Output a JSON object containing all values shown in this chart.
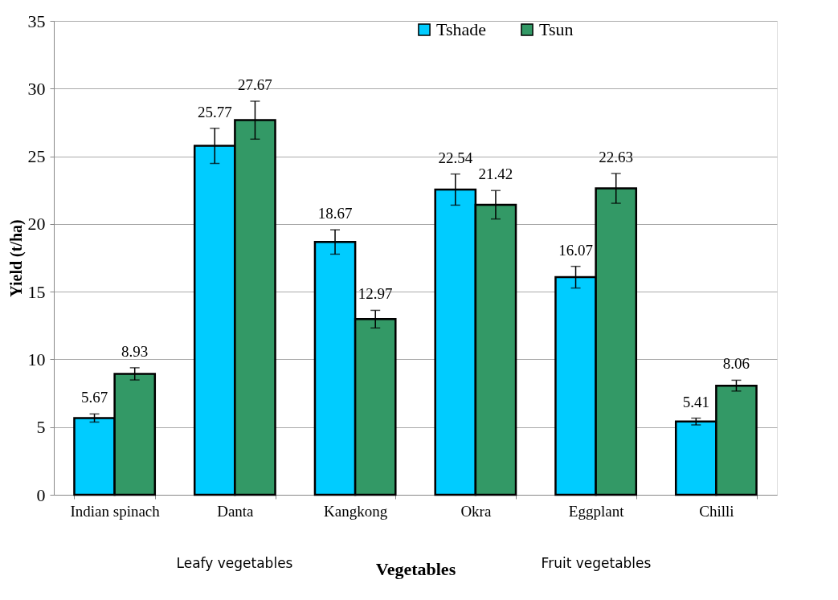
{
  "chart_data": {
    "type": "bar",
    "xlabel": "Vegetables",
    "ylabel": "Yield (t/ha)",
    "categories": [
      "Indian spinach",
      "Danta",
      "Kangkong",
      "Okra",
      "Eggplant",
      "Chilli"
    ],
    "series": [
      {
        "name": "Tshade",
        "color": "#00ccff",
        "values": [
          5.67,
          25.77,
          18.67,
          22.54,
          16.07,
          5.41
        ],
        "errors": [
          0.3,
          1.3,
          0.9,
          1.15,
          0.8,
          0.25
        ]
      },
      {
        "name": "Tsun",
        "color": "#339966",
        "values": [
          8.93,
          27.67,
          12.97,
          21.42,
          22.63,
          8.06
        ],
        "errors": [
          0.45,
          1.4,
          0.65,
          1.05,
          1.1,
          0.4
        ]
      }
    ],
    "ylim": [
      0,
      35
    ],
    "yticks": [
      0,
      5,
      10,
      15,
      20,
      25,
      30,
      35
    ],
    "grid": "y",
    "legend": "top right",
    "data_labels": true,
    "annotations": [
      "Leafy vegetables",
      "Fruit vegetables"
    ]
  }
}
